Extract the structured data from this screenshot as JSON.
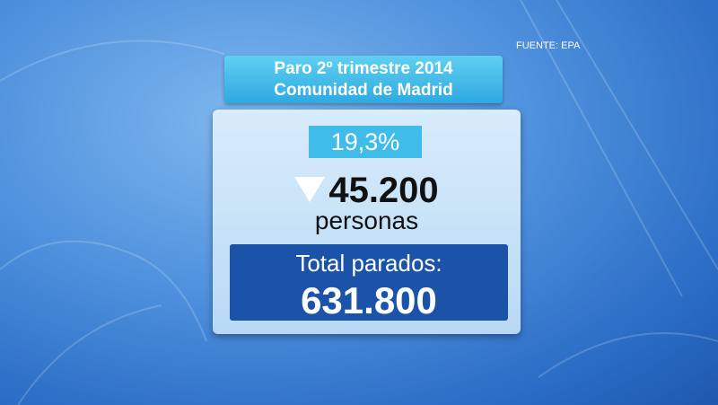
{
  "source": "FUENTE: EPA",
  "header": {
    "title_line1": "Paro 2º trimestre 2014",
    "title_line2": "Comunidad de Madrid"
  },
  "panel": {
    "rate": "19,3%",
    "change": "45.200",
    "change_unit": "personas",
    "total_label": "Total parados:",
    "total_value": "631.800"
  }
}
